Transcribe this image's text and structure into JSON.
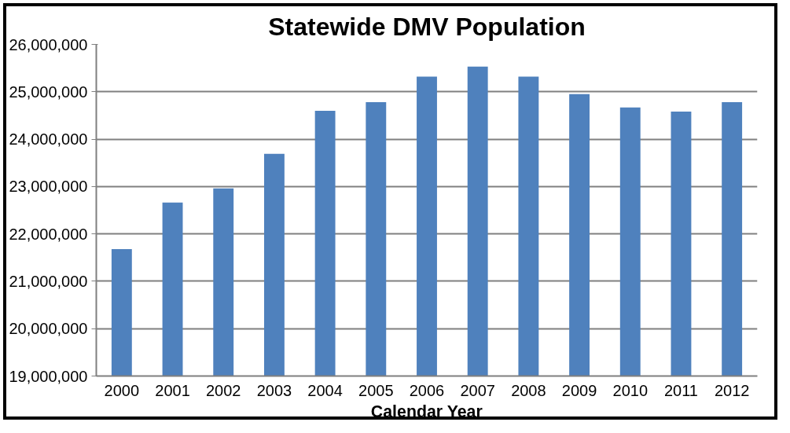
{
  "chart_data": {
    "type": "bar",
    "title": "Statewide DMV Population",
    "xlabel": "Calendar Year",
    "categories": [
      "2000",
      "2001",
      "2002",
      "2003",
      "2004",
      "2005",
      "2006",
      "2007",
      "2008",
      "2009",
      "2010",
      "2011",
      "2012"
    ],
    "values": [
      21680000,
      22660000,
      22960000,
      23690000,
      24600000,
      24780000,
      25320000,
      25530000,
      25320000,
      24950000,
      24670000,
      24580000,
      24780000
    ],
    "color": "#4f81bd",
    "ylim": [
      19000000,
      26000000
    ],
    "yticks": [
      {
        "value": 19000000,
        "label": "19,000,000"
      },
      {
        "value": 20000000,
        "label": "20,000,000"
      },
      {
        "value": 21000000,
        "label": "21,000,000"
      },
      {
        "value": 22000000,
        "label": "22,000,000"
      },
      {
        "value": 23000000,
        "label": "23,000,000"
      },
      {
        "value": 24000000,
        "label": "24,000,000"
      },
      {
        "value": 25000000,
        "label": "25,000,000"
      },
      {
        "value": 26000000,
        "label": "26,000,000"
      }
    ],
    "grid": "y"
  }
}
